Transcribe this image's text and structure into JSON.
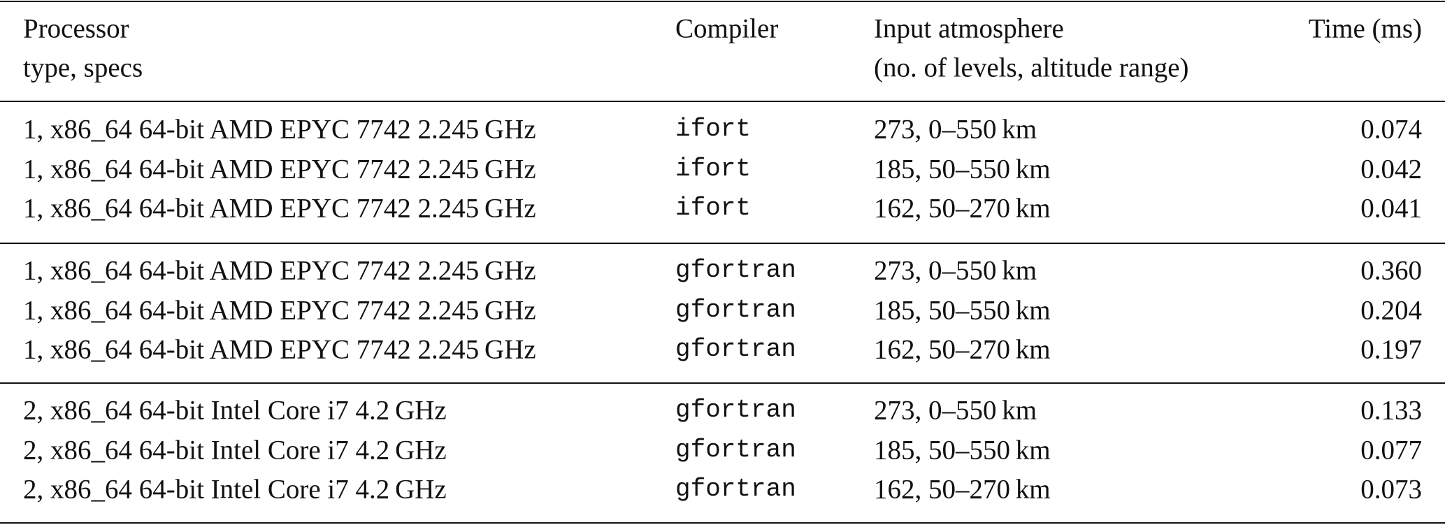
{
  "table": {
    "header": [
      [
        "Processor",
        "type, specs"
      ],
      [
        "Compiler"
      ],
      [
        "Input atmosphere",
        "(no. of levels, altitude range)"
      ],
      [
        "Time (ms)"
      ]
    ],
    "groups": [
      [
        [
          "1, x86_64 64-bit AMD EPYC 7742 2.245 GHz",
          "ifort",
          "273, 0–550 km",
          "0.074"
        ],
        [
          "1, x86_64 64-bit AMD EPYC 7742 2.245 GHz",
          "ifort",
          "185, 50–550 km",
          "0.042"
        ],
        [
          "1, x86_64 64-bit AMD EPYC 7742 2.245 GHz",
          "ifort",
          "162, 50–270 km",
          "0.041"
        ]
      ],
      [
        [
          "1, x86_64 64-bit AMD EPYC 7742 2.245 GHz",
          "gfortran",
          "273, 0–550 km",
          "0.360"
        ],
        [
          "1, x86_64 64-bit AMD EPYC 7742 2.245 GHz",
          "gfortran",
          "185, 50–550 km",
          "0.204"
        ],
        [
          "1, x86_64 64-bit AMD EPYC 7742 2.245 GHz",
          "gfortran",
          "162, 50–270 km",
          "0.197"
        ]
      ],
      [
        [
          "2, x86_64 64-bit Intel Core i7 4.2 GHz",
          "gfortran",
          "273, 0–550 km",
          "0.133"
        ],
        [
          "2, x86_64 64-bit Intel Core i7 4.2 GHz",
          "gfortran",
          "185, 50–550 km",
          "0.077"
        ],
        [
          "2, x86_64 64-bit Intel Core i7 4.2 GHz",
          "gfortran",
          "162, 50–270 km",
          "0.073"
        ]
      ]
    ]
  }
}
